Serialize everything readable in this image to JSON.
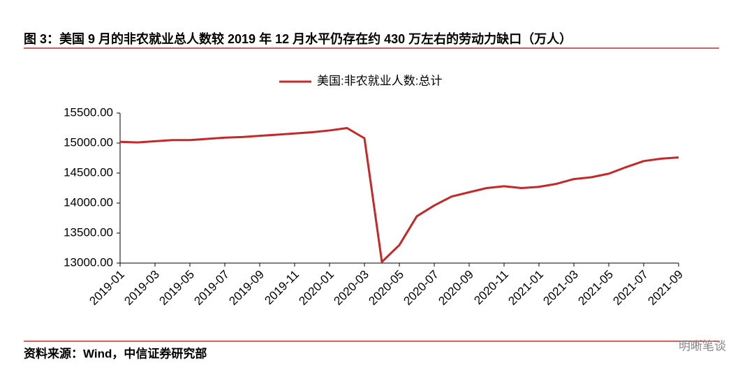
{
  "header": {
    "title": "图 3：美国 9 月的非农就业总人数较 2019 年 12 月水平仍存在约 430 万左右的劳动力缺口（万人）"
  },
  "chart_data": {
    "type": "line",
    "categories": [
      "2019-01",
      null,
      "2019-03",
      null,
      "2019-05",
      null,
      "2019-07",
      null,
      "2019-09",
      null,
      "2019-11",
      null,
      "2020-01",
      null,
      "2020-03",
      null,
      "2020-05",
      null,
      "2020-07",
      null,
      "2020-09",
      null,
      "2020-11",
      null,
      "2021-01",
      null,
      "2021-03",
      null,
      "2021-05",
      null,
      "2021-07",
      null,
      "2021-09"
    ],
    "series": [
      {
        "name": "美国:非农就业人数:总计",
        "color": "#c62828",
        "values": [
          15020,
          15010,
          15030,
          15050,
          15050,
          15070,
          15090,
          15100,
          15120,
          15140,
          15160,
          15180,
          15210,
          15250,
          15080,
          13020,
          13300,
          13780,
          13960,
          14110,
          14180,
          14250,
          14280,
          14250,
          14270,
          14320,
          14400,
          14430,
          14490,
          14600,
          14700,
          14740,
          14760
        ]
      }
    ],
    "ylim": [
      13000,
      15500
    ],
    "yticks": [
      {
        "value": 13000,
        "label": "13000.00"
      },
      {
        "value": 13500,
        "label": "13500.00"
      },
      {
        "value": 14000,
        "label": "14000.00"
      },
      {
        "value": 14500,
        "label": "14500.00"
      },
      {
        "value": 15000,
        "label": "15000.00"
      },
      {
        "value": 15500,
        "label": "15500.00"
      }
    ],
    "legend": "top"
  },
  "footer": {
    "source": "资料来源：Wind，中信证券研究部",
    "watermark": "明晰笔谈"
  }
}
